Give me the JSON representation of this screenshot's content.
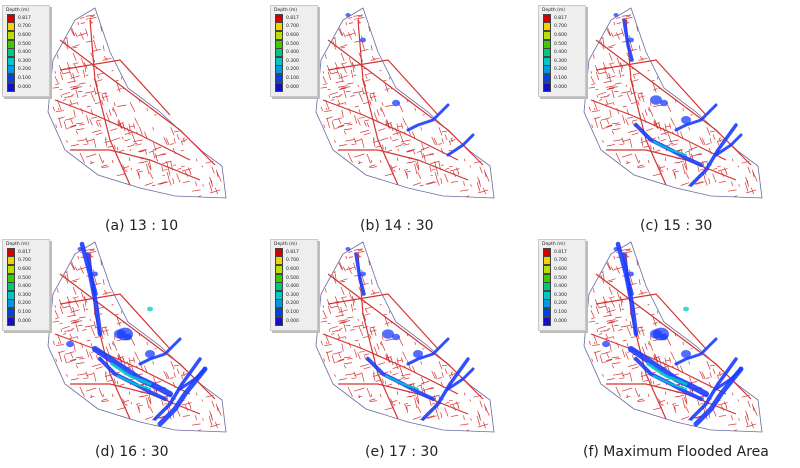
{
  "legend": {
    "title": "Depth (m)",
    "labels": [
      "0.817",
      "0.700",
      "0.600",
      "0.500",
      "0.400",
      "0.300",
      "0.200",
      "0.100",
      "0.000"
    ],
    "colors": [
      "#d40000",
      "#f2d400",
      "#b8e000",
      "#3bcc00",
      "#00c878",
      "#00c8c8",
      "#0099dd",
      "#0040ee",
      "#1010c8"
    ]
  },
  "colors": {
    "network": "#d43434",
    "boundary": "#6a6aa0",
    "flood": "#1a3cff",
    "deep": "#00c8c8"
  },
  "panels": [
    {
      "caption": "(a) 13 : 10",
      "flood_level": 0
    },
    {
      "caption": "(b) 14 : 30",
      "flood_level": 1
    },
    {
      "caption": "(c) 15 : 30",
      "flood_level": 2
    },
    {
      "caption": "(d) 16 : 30",
      "flood_level": 3
    },
    {
      "caption": "(e) 17 : 30",
      "flood_level": 2
    },
    {
      "caption": "(f) Maximum Flooded Area",
      "flood_level": 3
    }
  ]
}
